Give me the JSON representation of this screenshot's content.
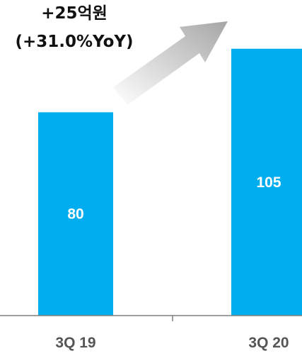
{
  "chart_data": {
    "type": "bar",
    "categories": [
      "3Q 19",
      "3Q 20"
    ],
    "values": [
      80,
      105
    ],
    "data_labels": [
      "80",
      "105"
    ],
    "ylim": [
      0,
      120
    ],
    "grid": false,
    "bar_color": "#00AEEF",
    "annotation": {
      "line1": "+25억원",
      "line2": "(+31.0%YoY)"
    }
  }
}
